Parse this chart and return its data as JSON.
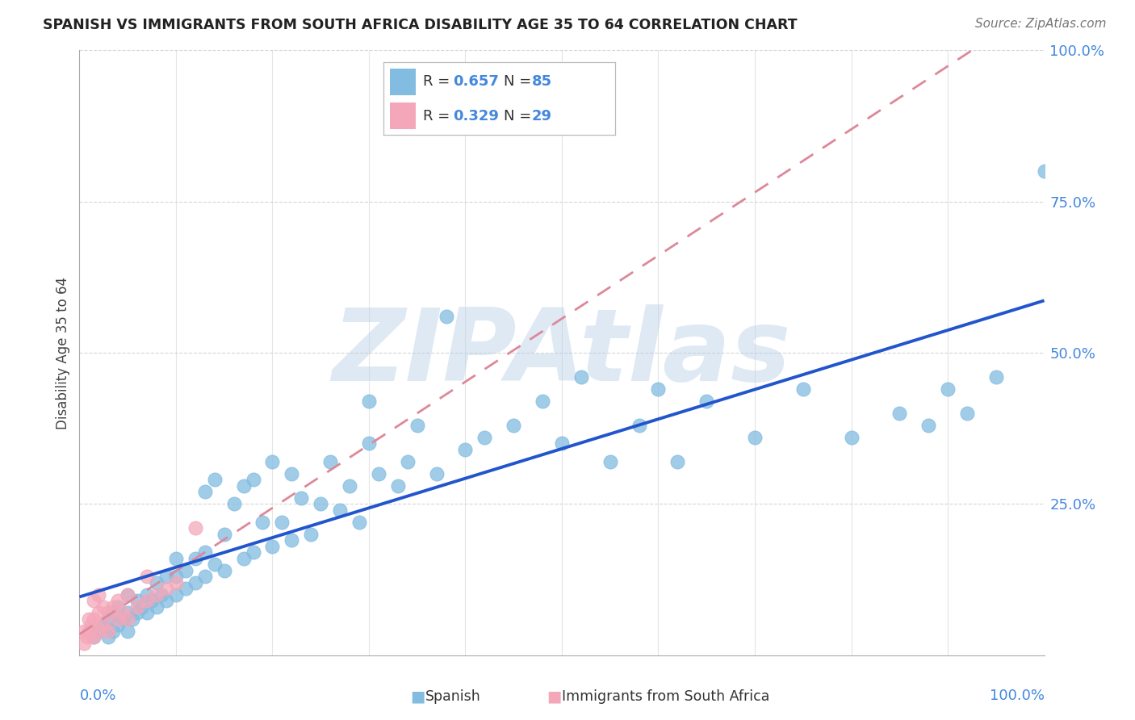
{
  "title": "SPANISH VS IMMIGRANTS FROM SOUTH AFRICA DISABILITY AGE 35 TO 64 CORRELATION CHART",
  "source": "Source: ZipAtlas.com",
  "ylabel": "Disability Age 35 to 64",
  "watermark": "ZIPAtlas",
  "blue_color": "#82bce0",
  "pink_color": "#f4a7b9",
  "trend_blue": "#2255cc",
  "trend_pink": "#dd8899",
  "value_color": "#4488dd",
  "axis_color": "#4488dd",
  "grid_color": "#cccccc",
  "title_color": "#333333",
  "R_blue": 0.657,
  "N_blue": 85,
  "R_pink": 0.329,
  "N_pink": 29,
  "blue_x": [
    0.015,
    0.02,
    0.025,
    0.03,
    0.03,
    0.035,
    0.035,
    0.04,
    0.04,
    0.045,
    0.05,
    0.05,
    0.05,
    0.055,
    0.06,
    0.06,
    0.065,
    0.07,
    0.07,
    0.075,
    0.08,
    0.08,
    0.085,
    0.09,
    0.09,
    0.1,
    0.1,
    0.1,
    0.11,
    0.11,
    0.12,
    0.12,
    0.13,
    0.13,
    0.13,
    0.14,
    0.14,
    0.15,
    0.15,
    0.16,
    0.17,
    0.17,
    0.18,
    0.18,
    0.19,
    0.2,
    0.2,
    0.21,
    0.22,
    0.22,
    0.23,
    0.24,
    0.25,
    0.26,
    0.27,
    0.28,
    0.29,
    0.3,
    0.3,
    0.31,
    0.33,
    0.34,
    0.35,
    0.37,
    0.38,
    0.4,
    0.42,
    0.45,
    0.48,
    0.5,
    0.52,
    0.55,
    0.58,
    0.6,
    0.62,
    0.65,
    0.7,
    0.75,
    0.8,
    0.85,
    0.88,
    0.9,
    0.92,
    0.95,
    1.0
  ],
  "blue_y": [
    0.03,
    0.04,
    0.05,
    0.03,
    0.06,
    0.04,
    0.07,
    0.05,
    0.08,
    0.06,
    0.04,
    0.07,
    0.1,
    0.06,
    0.07,
    0.09,
    0.08,
    0.07,
    0.1,
    0.09,
    0.08,
    0.12,
    0.1,
    0.09,
    0.13,
    0.1,
    0.13,
    0.16,
    0.11,
    0.14,
    0.12,
    0.16,
    0.13,
    0.17,
    0.27,
    0.15,
    0.29,
    0.14,
    0.2,
    0.25,
    0.16,
    0.28,
    0.17,
    0.29,
    0.22,
    0.18,
    0.32,
    0.22,
    0.19,
    0.3,
    0.26,
    0.2,
    0.25,
    0.32,
    0.24,
    0.28,
    0.22,
    0.35,
    0.42,
    0.3,
    0.28,
    0.32,
    0.38,
    0.3,
    0.56,
    0.34,
    0.36,
    0.38,
    0.42,
    0.35,
    0.46,
    0.32,
    0.38,
    0.44,
    0.32,
    0.42,
    0.36,
    0.44,
    0.36,
    0.4,
    0.38,
    0.44,
    0.4,
    0.46,
    0.8
  ],
  "pink_x": [
    0.005,
    0.005,
    0.008,
    0.01,
    0.01,
    0.012,
    0.015,
    0.015,
    0.015,
    0.02,
    0.02,
    0.02,
    0.025,
    0.025,
    0.03,
    0.03,
    0.035,
    0.04,
    0.04,
    0.045,
    0.05,
    0.05,
    0.06,
    0.07,
    0.07,
    0.08,
    0.09,
    0.1,
    0.12
  ],
  "pink_y": [
    0.02,
    0.04,
    0.03,
    0.04,
    0.06,
    0.05,
    0.03,
    0.06,
    0.09,
    0.04,
    0.07,
    0.1,
    0.05,
    0.08,
    0.04,
    0.07,
    0.08,
    0.06,
    0.09,
    0.07,
    0.06,
    0.1,
    0.08,
    0.09,
    0.13,
    0.1,
    0.11,
    0.12,
    0.21
  ]
}
